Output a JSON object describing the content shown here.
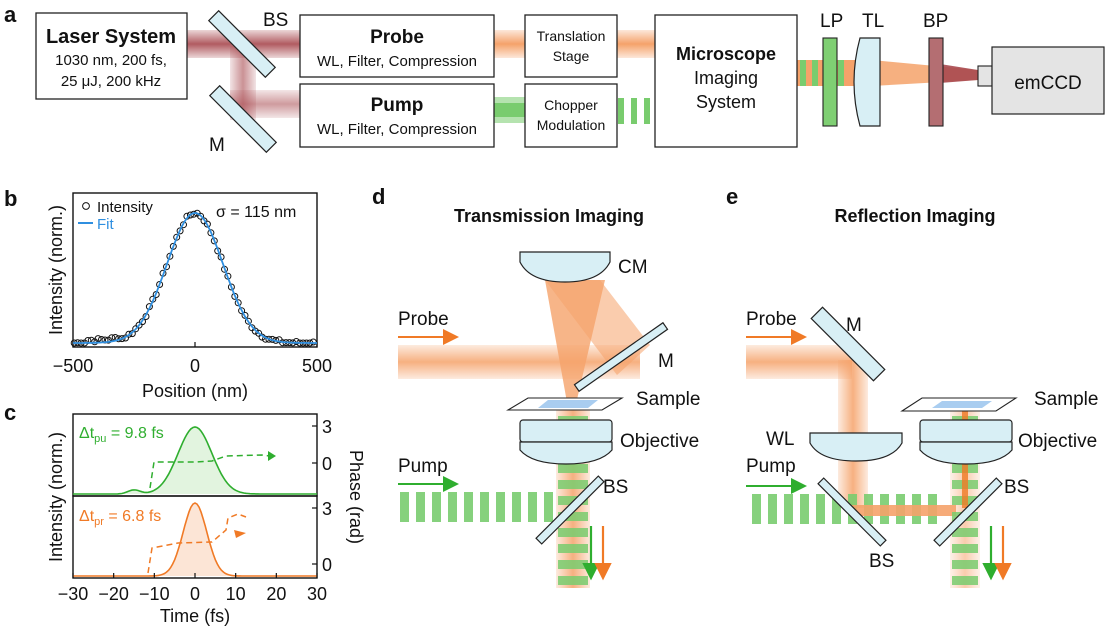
{
  "colors": {
    "probe_orange": "#f5a26a",
    "probe_line": "#f07a26",
    "pump_green": "#79cc6e",
    "pump_line": "#2fae2f",
    "laser_red": "#a8494f",
    "glass": "#d8eff5",
    "fit_blue": "#2f8fe0",
    "sample_blue": "#a9cdf0"
  },
  "panel_a": {
    "label": "a",
    "laser": {
      "title": "Laser System",
      "line1": "1030 nm, 200 fs,",
      "line2": "25 μJ, 200 kHz"
    },
    "bs_label": "BS",
    "m_label": "M",
    "probe": {
      "title": "Probe",
      "sub": "WL, Filter, Compression"
    },
    "pump": {
      "title": "Pump",
      "sub": "WL, Filter, Compression"
    },
    "translation": {
      "line1": "Translation",
      "line2": "Stage"
    },
    "chopper": {
      "line1": "Chopper",
      "line2": "Modulation"
    },
    "microscope": {
      "line1": "Microscope",
      "line2": "Imaging",
      "line3": "System"
    },
    "lp": "LP",
    "tl": "TL",
    "bp": "BP",
    "camera": "emCCD"
  },
  "panel_b": {
    "label": "b",
    "legend_intensity": "Intensity",
    "legend_fit": "Fit",
    "sigma": "σ = 115 nm",
    "ylabel": "Intensity (norm.)",
    "xlabel": "Position (nm)",
    "xticks": [
      "−500",
      "0",
      "500"
    ]
  },
  "panel_c": {
    "label": "c",
    "pump_dt_main": "Δt",
    "pump_dt_sub": "pu",
    "pump_dt_val": " = 9.8 fs",
    "probe_dt_main": "Δt",
    "probe_dt_sub": "pr",
    "probe_dt_val": " = 6.8 fs",
    "ylabel_left": "Intensity (norm.)",
    "ylabel_right": "Phase (rad)",
    "xlabel": "Time (fs)",
    "xticks": [
      "−30",
      "−20",
      "−10",
      "0",
      "10",
      "20",
      "30"
    ],
    "phase_ticks": [
      "3",
      "0"
    ]
  },
  "panel_d": {
    "label": "d",
    "title": "Transmission Imaging",
    "cm": "CM",
    "probe": "Probe",
    "m": "M",
    "sample": "Sample",
    "objective": "Objective",
    "pump": "Pump",
    "bs": "BS"
  },
  "panel_e": {
    "label": "e",
    "title": "Reflection Imaging",
    "probe": "Probe",
    "m": "M",
    "sample": "Sample",
    "wl": "WL",
    "objective": "Objective",
    "pump": "Pump",
    "bs_right": "BS",
    "bs_bottom": "BS"
  },
  "chart_data": [
    {
      "type": "scatter",
      "panel": "b",
      "xlabel": "Position (nm)",
      "ylabel": "Intensity (norm.)",
      "xlim": [
        -500,
        500
      ],
      "ylim": [
        0,
        1.05
      ],
      "xticks": [
        -500,
        0,
        500
      ],
      "series": [
        {
          "name": "Intensity",
          "style": "open-circles",
          "gaussian": {
            "center": 0,
            "sigma": 115,
            "amplitude": 1.0
          }
        },
        {
          "name": "Fit",
          "style": "line",
          "gaussian": {
            "center": 0,
            "sigma": 115,
            "amplitude": 1.0
          }
        }
      ],
      "annotation": "σ = 115 nm"
    },
    {
      "type": "area",
      "panel": "c-top",
      "xlim": [
        -30,
        30
      ],
      "intensity": {
        "center": 0,
        "fwhm": 9.8,
        "small_bump_at": -15
      },
      "phase_range": [
        0,
        3
      ]
    },
    {
      "type": "area",
      "panel": "c-bottom",
      "xlim": [
        -30,
        30
      ],
      "intensity": {
        "center": 0,
        "fwhm": 6.8
      },
      "phase_range": [
        0,
        3
      ]
    }
  ]
}
